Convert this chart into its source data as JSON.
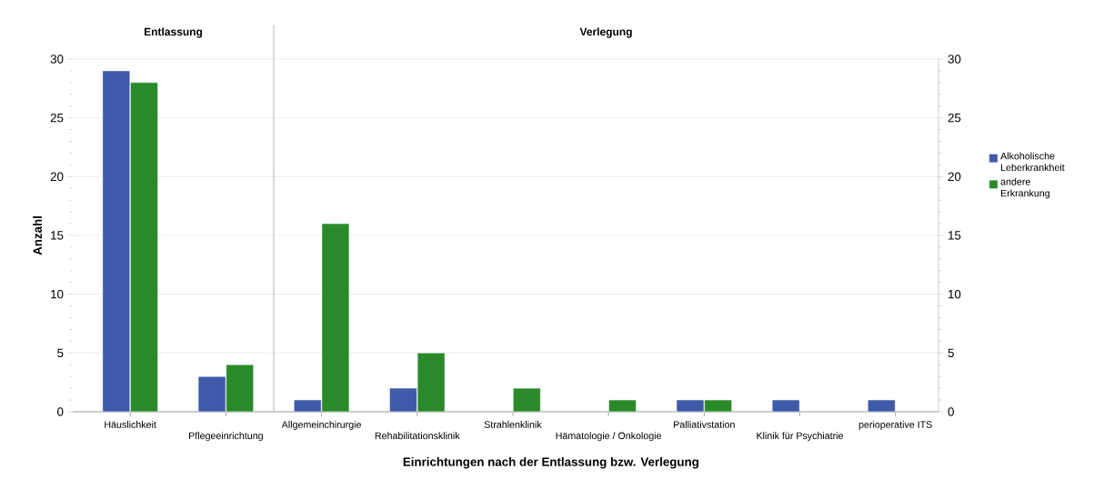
{
  "chart_data": [
    {
      "type": "bar",
      "title": "Entlassung",
      "ylabel": "Anzahl",
      "categories": [
        "Häuslichkeit",
        "Pflegeeinrichtung"
      ],
      "series": [
        {
          "color": "#3f5aa8",
          "values": [
            29,
            3
          ]
        },
        {
          "color": "#2a8a2a",
          "values": [
            28,
            4
          ]
        }
      ],
      "ylim": [
        0,
        30
      ],
      "yticks": [
        0,
        5,
        10,
        15,
        20,
        25,
        30
      ],
      "grid": "y"
    },
    {
      "type": "bar",
      "title": "Verlegung",
      "xlabel": "Einrichtungen nach der Entlassung bzw. Verlegung",
      "categories": [
        "Allgemeinchirurgie",
        "Rehabilitationsklinik",
        "Strahlenklinik",
        "Hämatologie / Onkologie",
        "Palliativstation",
        "Klinik für Psychiatrie",
        "perioperative ITS"
      ],
      "series": [
        {
          "name": "Alkoholische Leberkrankheit",
          "color": "#3f5aa8",
          "values": [
            1,
            2,
            null,
            null,
            1,
            1,
            1
          ]
        },
        {
          "name": "andere Erkrankung",
          "color": "#2a8a2a",
          "values": [
            16,
            5,
            2,
            1,
            1,
            null,
            null
          ]
        }
      ],
      "ylim": [
        0,
        30
      ],
      "yticks": [
        0,
        5,
        10,
        15,
        20,
        25,
        30
      ],
      "grid": "y",
      "legend": "right"
    }
  ]
}
